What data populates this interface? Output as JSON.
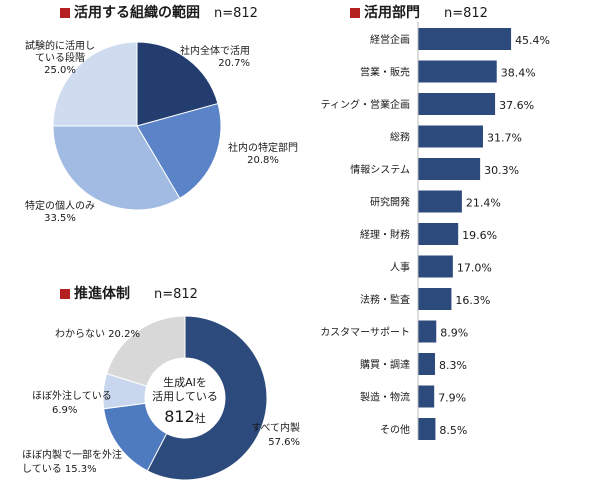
{
  "chart_data": [
    {
      "type": "pie",
      "title": "活用する組織の範囲",
      "n_label": "n=812",
      "slices": [
        {
          "label": "社内全体で活用",
          "label_lines": [
            "社内全体で活用"
          ],
          "value": 20.7,
          "value_label": "20.7%",
          "color": "#233e6e"
        },
        {
          "label": "社内の特定部門",
          "label_lines": [
            "社内の特定部門"
          ],
          "value": 20.8,
          "value_label": "20.8%",
          "color": "#5b84c8"
        },
        {
          "label": "特定の個人のみ",
          "label_lines": [
            "特定の個人のみ"
          ],
          "value": 33.5,
          "value_label": "33.5%",
          "color": "#a2bbe2"
        },
        {
          "label": "試験的に活用している段階",
          "label_lines": [
            "試験的に活用し",
            "ている段階"
          ],
          "value": 25.0,
          "value_label": "25.0%",
          "color": "#cfdcf0"
        }
      ]
    },
    {
      "type": "bar",
      "orientation": "horizontal",
      "title": "活用部門",
      "n_label": "n=812",
      "categories": [
        "経営企画",
        "営業・販売",
        "マーケティング・営業企画",
        "総務",
        "情報システム",
        "研究開発",
        "経理・財務",
        "人事",
        "法務・監査",
        "カスタマーサポート",
        "購買・調達",
        "製造・物流",
        "その他"
      ],
      "values": [
        45.4,
        38.4,
        37.6,
        31.7,
        30.3,
        21.4,
        19.6,
        17.0,
        16.3,
        8.9,
        8.3,
        7.9,
        8.5
      ],
      "value_labels": [
        "45.4%",
        "38.4%",
        "37.6%",
        "31.7%",
        "30.3%",
        "21.4%",
        "19.6%",
        "17.0%",
        "16.3%",
        "8.9%",
        "8.3%",
        "7.9%",
        "8.5%"
      ],
      "color": "#2c4a7c"
    },
    {
      "type": "pie",
      "subtype": "donut",
      "title": "推進体制",
      "n_label": "n=812",
      "center_text": [
        "生成AIを",
        "活用している"
      ],
      "center_count": "812",
      "center_unit": "社",
      "slices": [
        {
          "label": "すべて内製",
          "label_lines": [
            "すべて内製"
          ],
          "value": 57.6,
          "value_label": "57.6%",
          "color": "#2c4a7c"
        },
        {
          "label": "ほぼ内製で一部を外注している",
          "label_lines": [
            "ほぼ内製で一部を外注",
            "している 15.3%"
          ],
          "value": 15.3,
          "value_label": "15.3%",
          "color": "#4e7ac0"
        },
        {
          "label": "ほぼ外注している",
          "label_lines": [
            "ほぼ外注している"
          ],
          "value": 6.9,
          "value_label": "6.9%",
          "color": "#c9d7ee"
        },
        {
          "label": "わからない",
          "label_lines": [
            "わからない 20.2%"
          ],
          "value": 20.2,
          "value_label": "20.2%",
          "color": "#d8d8d8"
        }
      ]
    }
  ]
}
